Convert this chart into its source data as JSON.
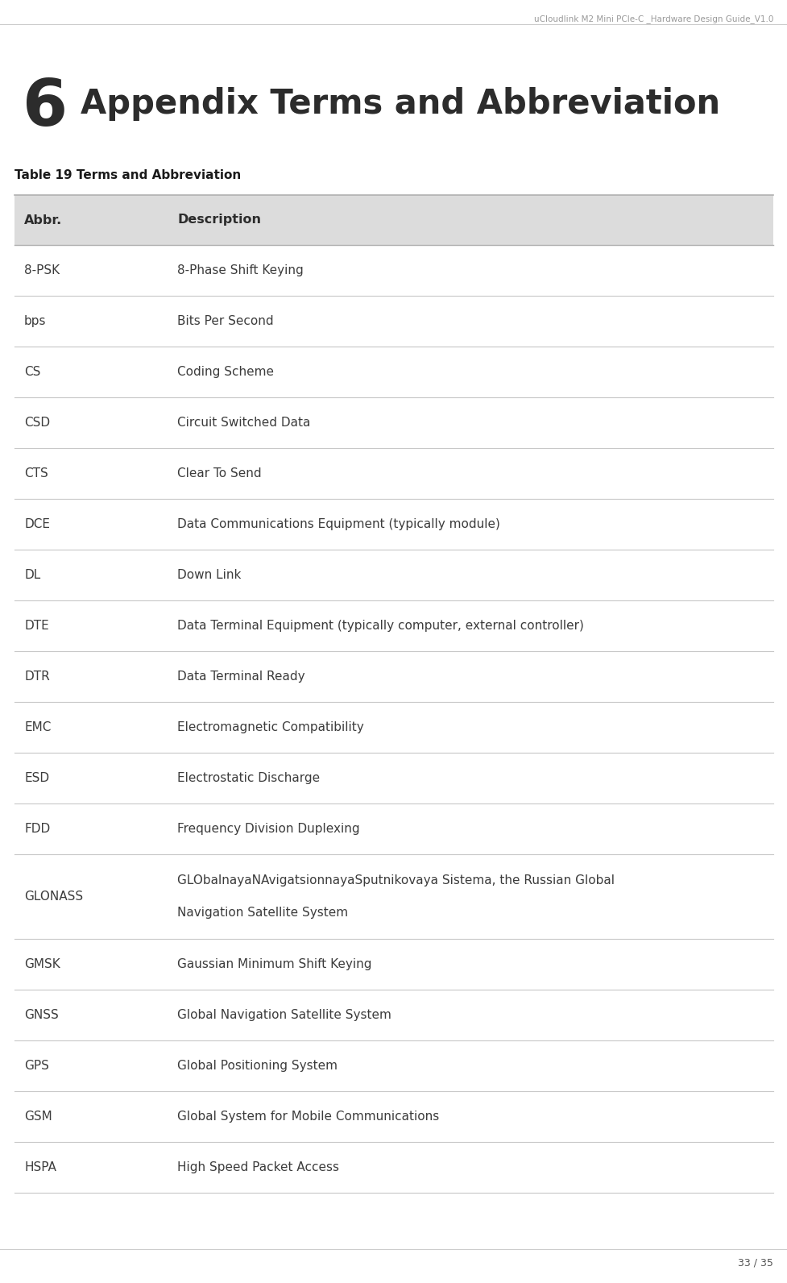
{
  "header_text": "uCloudlink M2 Mini PCIe-C _Hardware Design Guide_V1.0",
  "chapter_number": "6",
  "chapter_title": "Appendix Terms and Abbreviation",
  "table_title": "Table 19 Terms and Abbreviation",
  "col_headers": [
    "Abbr.",
    "Description"
  ],
  "rows": [
    [
      "8-PSK",
      "8-Phase Shift Keying",
      false
    ],
    [
      "bps",
      "Bits Per Second",
      false
    ],
    [
      "CS",
      "Coding Scheme",
      false
    ],
    [
      "CSD",
      "Circuit Switched Data",
      false
    ],
    [
      "CTS",
      "Clear To Send",
      false
    ],
    [
      "DCE",
      "Data Communications Equipment (typically module)",
      false
    ],
    [
      "DL",
      "Down Link",
      false
    ],
    [
      "DTE",
      "Data Terminal Equipment (typically computer, external controller)",
      false
    ],
    [
      "DTR",
      "Data Terminal Ready",
      false
    ],
    [
      "EMC",
      "Electromagnetic Compatibility",
      false
    ],
    [
      "ESD",
      "Electrostatic Discharge",
      false
    ],
    [
      "FDD",
      "Frequency Division Duplexing",
      false
    ],
    [
      "GLONASS",
      "GLObalnayaNAvigatsionnayaSputnikovaya Sistema, the Russian Global\nNavigation Satellite System",
      true
    ],
    [
      "GMSK",
      "Gaussian Minimum Shift Keying",
      false
    ],
    [
      "GNSS",
      "Global Navigation Satellite System",
      false
    ],
    [
      "GPS",
      "Global Positioning System",
      false
    ],
    [
      "GSM",
      "Global System for Mobile Communications",
      false
    ],
    [
      "HSPA",
      "High Speed Packet Access",
      false
    ]
  ],
  "bg_color": "#ffffff",
  "header_row_bg": "#dcdcdc",
  "row_line_color": "#c8c8c8",
  "header_top_line_color": "#b0b0b0",
  "chapter_num_color": "#2c2c2c",
  "chapter_title_color": "#2c2c2c",
  "table_title_color": "#1a1a1a",
  "col_header_color": "#2c2c2c",
  "cell_text_color": "#3c3c3c",
  "page_header_color": "#999999",
  "footer_text": "33 / 35",
  "footer_color": "#555555"
}
